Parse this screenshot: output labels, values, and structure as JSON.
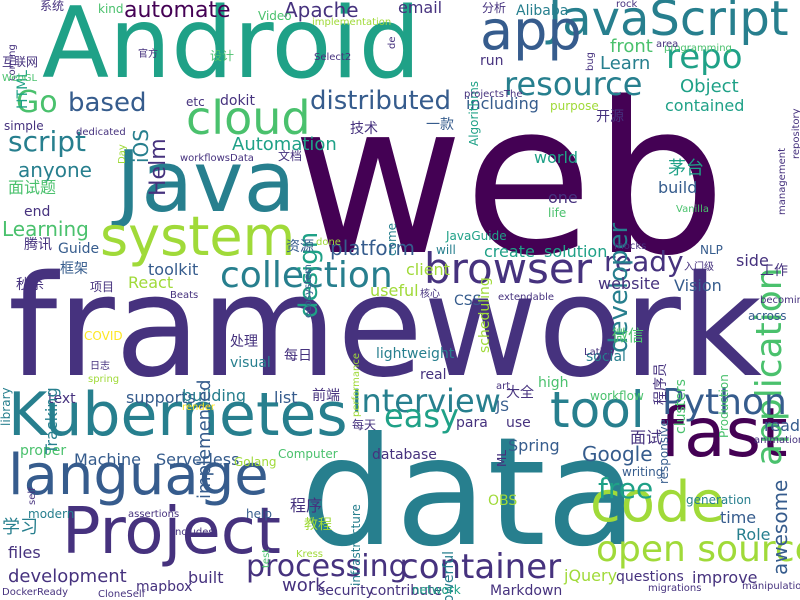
{
  "palette": {
    "p1": "#440154",
    "p2": "#46327e",
    "p3": "#365c8d",
    "p4": "#277f8e",
    "p5": "#1fa187",
    "p6": "#4ac16d",
    "p7": "#a0da39",
    "p8": "#fde725"
  },
  "words": [
    {
      "text": "web",
      "color": "p1"
    },
    {
      "text": "framework",
      "color": "p2"
    },
    {
      "text": "Android",
      "color": "p5"
    },
    {
      "text": "data",
      "color": "p4"
    },
    {
      "text": "Java",
      "color": "p4"
    },
    {
      "text": "JavaScript",
      "color": "p4"
    },
    {
      "text": "Kubernetes",
      "color": "p4"
    },
    {
      "text": "system",
      "color": "p7"
    },
    {
      "text": "app",
      "color": "p3"
    },
    {
      "text": "cloud",
      "color": "p6"
    },
    {
      "text": "tool",
      "color": "p4"
    },
    {
      "text": "fast",
      "color": "p1"
    },
    {
      "text": "code",
      "color": "p7"
    },
    {
      "text": "language",
      "color": "p3"
    },
    {
      "text": "Project",
      "color": "p2"
    },
    {
      "text": "browser",
      "color": "p2"
    },
    {
      "text": "collection",
      "color": "p4"
    },
    {
      "text": "resource",
      "color": "p4"
    },
    {
      "text": "repo",
      "color": "p5"
    },
    {
      "text": "application",
      "color": "p6"
    },
    {
      "text": "open source",
      "color": "p7"
    },
    {
      "text": "container",
      "color": "p2"
    },
    {
      "text": "processing",
      "color": "p2"
    },
    {
      "text": "Python",
      "color": "p3"
    },
    {
      "text": "Interview",
      "color": "p4"
    },
    {
      "text": "easy",
      "color": "p5"
    },
    {
      "text": "distributed",
      "color": "p3"
    },
    {
      "text": "script",
      "color": "p4"
    },
    {
      "text": "Go",
      "color": "p6"
    },
    {
      "text": "based",
      "color": "p3"
    },
    {
      "text": "ready",
      "color": "p2"
    },
    {
      "text": "automate",
      "color": "p1"
    },
    {
      "text": "platform",
      "color": "p3"
    },
    {
      "text": "design",
      "color": "p5"
    },
    {
      "text": "Helm",
      "color": "p2"
    },
    {
      "text": "iOS",
      "color": "p4"
    },
    {
      "text": "Apache",
      "color": "p2"
    },
    {
      "text": "free",
      "color": "p5"
    },
    {
      "text": "anyone",
      "color": "p4"
    },
    {
      "text": "Learning",
      "color": "p6"
    },
    {
      "text": "Learn",
      "color": "p4"
    },
    {
      "text": "front",
      "color": "p6"
    },
    {
      "text": "Object",
      "color": "p5"
    },
    {
      "text": "including",
      "color": "p3"
    },
    {
      "text": "contained",
      "color": "p5"
    },
    {
      "text": "Automation",
      "color": "p5"
    },
    {
      "text": "developer",
      "color": "p4"
    },
    {
      "text": "Google",
      "color": "p3"
    },
    {
      "text": "website",
      "color": "p2"
    },
    {
      "text": "toolkit",
      "color": "p3"
    },
    {
      "text": "React",
      "color": "p7"
    },
    {
      "text": "Vision",
      "color": "p3"
    },
    {
      "text": "Machine",
      "color": "p3"
    },
    {
      "text": "Serverless",
      "color": "p3"
    },
    {
      "text": "supports",
      "color": "p3"
    },
    {
      "text": "building",
      "color": "p4"
    },
    {
      "text": "implemented",
      "color": "p3"
    },
    {
      "text": "list",
      "color": "p3"
    },
    {
      "text": "Spring",
      "color": "p3"
    },
    {
      "text": "create",
      "color": "p5"
    },
    {
      "text": "solution",
      "color": "p5"
    },
    {
      "text": "one",
      "color": "p2"
    },
    {
      "text": "world",
      "color": "p5"
    },
    {
      "text": "build",
      "color": "p3"
    },
    {
      "text": "side",
      "color": "p2"
    },
    {
      "text": "awesome",
      "color": "p3"
    },
    {
      "text": "time",
      "color": "p3"
    },
    {
      "text": "Role",
      "color": "p4"
    },
    {
      "text": "reading",
      "color": "p3"
    },
    {
      "text": "improve",
      "color": "p2"
    },
    {
      "text": "questions",
      "color": "p2"
    },
    {
      "text": "development",
      "color": "p2"
    },
    {
      "text": "built",
      "color": "p2"
    },
    {
      "text": "work",
      "color": "p2"
    },
    {
      "text": "files",
      "color": "p2"
    },
    {
      "text": "mapbox",
      "color": "p2"
    },
    {
      "text": "Markdown",
      "color": "p2"
    },
    {
      "text": "jQuery",
      "color": "p7"
    },
    {
      "text": "contribute",
      "color": "p2"
    },
    {
      "text": "security",
      "color": "p2"
    },
    {
      "text": "database",
      "color": "p2"
    },
    {
      "text": "para",
      "color": "p2"
    },
    {
      "text": "use",
      "color": "p2"
    },
    {
      "text": "JS",
      "color": "p3"
    },
    {
      "text": "text",
      "color": "p2"
    },
    {
      "text": "proper",
      "color": "p6"
    },
    {
      "text": "useful",
      "color": "p7"
    },
    {
      "text": "client",
      "color": "p7"
    },
    {
      "text": "lightweight",
      "color": "p4"
    },
    {
      "text": "real",
      "color": "p2"
    },
    {
      "text": "high",
      "color": "p6"
    },
    {
      "text": "social",
      "color": "p4"
    },
    {
      "text": "email",
      "color": "p2"
    },
    {
      "text": "kind",
      "color": "p6"
    },
    {
      "text": "dokit",
      "color": "p2"
    },
    {
      "text": "run",
      "color": "p2"
    },
    {
      "text": "Alibaba",
      "color": "p4"
    },
    {
      "text": "end",
      "color": "p2"
    },
    {
      "text": "Guide",
      "color": "p3"
    },
    {
      "text": "Tracking",
      "color": "p4"
    },
    {
      "text": "visual",
      "color": "p4"
    },
    {
      "text": "CSS",
      "color": "p3"
    },
    {
      "text": "Golang",
      "color": "p7"
    },
    {
      "text": "Computer",
      "color": "p6"
    },
    {
      "text": "test",
      "color": "p6"
    },
    {
      "text": "help",
      "color": "p3"
    },
    {
      "text": "modern",
      "color": "p4"
    },
    {
      "text": "OBS",
      "color": "p7"
    },
    {
      "text": "powerful",
      "color": "p4"
    },
    {
      "text": "library",
      "color": "p4"
    },
    {
      "text": "simple",
      "color": "p2"
    },
    {
      "text": "HTML",
      "color": "p5"
    },
    {
      "text": "COVID",
      "color": "p8"
    },
    {
      "text": "etc",
      "color": "p2"
    },
    {
      "text": "across",
      "color": "p3"
    },
    {
      "text": "clusters",
      "color": "p6"
    },
    {
      "text": "infrastructure",
      "color": "p4"
    },
    {
      "text": "scheduling",
      "color": "p7"
    },
    {
      "text": "workflow",
      "color": "p6"
    },
    {
      "text": "writing",
      "color": "p3"
    },
    {
      "text": "generation",
      "color": "p4"
    },
    {
      "text": "purpose",
      "color": "p7"
    },
    {
      "text": "life",
      "color": "p6"
    },
    {
      "text": "come",
      "color": "p4"
    },
    {
      "text": "will",
      "color": "p4"
    },
    {
      "text": "NLP",
      "color": "p3"
    },
    {
      "text": "mocks",
      "color": "p2"
    },
    {
      "text": "manipulation",
      "color": "p2"
    },
    {
      "text": "migrations",
      "color": "p2"
    },
    {
      "text": "network",
      "color": "p5"
    },
    {
      "text": "Production",
      "color": "p6"
    },
    {
      "text": "Algorithms",
      "color": "p5"
    },
    {
      "text": "projectsThe",
      "color": "p2"
    },
    {
      "text": "programming",
      "color": "p6"
    },
    {
      "text": "repository",
      "color": "p2"
    },
    {
      "text": "management",
      "color": "p2"
    },
    {
      "text": "area",
      "color": "p2"
    },
    {
      "text": "Video",
      "color": "p6"
    },
    {
      "text": "implementation",
      "color": "p7"
    },
    {
      "text": "Select2",
      "color": "p2"
    },
    {
      "text": "ecosystem",
      "color": "p3"
    },
    {
      "text": "workflowsData",
      "color": "p2"
    },
    {
      "text": "dedicated",
      "color": "p2"
    },
    {
      "text": "performance",
      "color": "p7"
    },
    {
      "text": "extendable",
      "color": "p2"
    },
    {
      "text": "becoming",
      "color": "p2"
    },
    {
      "text": "animations",
      "color": "p2"
    },
    {
      "text": "responsive",
      "color": "p3"
    },
    {
      "text": "assertions",
      "color": "p2"
    },
    {
      "text": "Includes",
      "color": "p2"
    },
    {
      "text": "self",
      "color": "p2"
    },
    {
      "text": "render",
      "color": "p8"
    },
    {
      "text": "DockerReady",
      "color": "p2"
    },
    {
      "text": "CloneSelf",
      "color": "p2"
    },
    {
      "text": "Vanilla",
      "color": "p6"
    },
    {
      "text": "Beats",
      "color": "p2"
    },
    {
      "text": "Day",
      "color": "p7"
    },
    {
      "text": "coming",
      "color": "p2"
    },
    {
      "text": "WebGL",
      "color": "p6"
    },
    {
      "text": "rock",
      "color": "p2"
    },
    {
      "text": "bug",
      "color": "p2"
    },
    {
      "text": "de",
      "color": "p2"
    },
    {
      "text": "done",
      "color": "p7"
    },
    {
      "text": "JavaGuide",
      "color": "p5"
    },
    {
      "text": "art",
      "color": "p2"
    },
    {
      "text": "Latin",
      "color": "p2"
    },
    {
      "text": "Kress",
      "color": "p7"
    },
    {
      "text": "ML",
      "color": "p2"
    },
    {
      "text": "spring",
      "color": "p7"
    },
    {
      "text": "系统",
      "color": "p2"
    },
    {
      "text": "互联网",
      "color": "p2"
    },
    {
      "text": "官方",
      "color": "p2"
    },
    {
      "text": "设计",
      "color": "p6"
    },
    {
      "text": "分析",
      "color": "p2"
    },
    {
      "text": "开源",
      "color": "p2"
    },
    {
      "text": "技术",
      "color": "p2"
    },
    {
      "text": "一款",
      "color": "p3"
    },
    {
      "text": "文档",
      "color": "p2"
    },
    {
      "text": "茅台",
      "color": "p5"
    },
    {
      "text": "面试题",
      "color": "p6"
    },
    {
      "text": "腾讯",
      "color": "p2"
    },
    {
      "text": "资源",
      "color": "p3"
    },
    {
      "text": "框架",
      "color": "p3"
    },
    {
      "text": "秒杀",
      "color": "p2"
    },
    {
      "text": "项目",
      "color": "p2"
    },
    {
      "text": "工作",
      "color": "p2"
    },
    {
      "text": "入门级",
      "color": "p2"
    },
    {
      "text": "微信",
      "color": "p6"
    },
    {
      "text": "处理",
      "color": "p2"
    },
    {
      "text": "每日",
      "color": "p2"
    },
    {
      "text": "日志",
      "color": "p2"
    },
    {
      "text": "程序员",
      "color": "p2"
    },
    {
      "text": "前端",
      "color": "p2"
    },
    {
      "text": "大全",
      "color": "p2"
    },
    {
      "text": "每天",
      "color": "p2"
    },
    {
      "text": "面试",
      "color": "p2"
    },
    {
      "text": "学习",
      "color": "p4"
    },
    {
      "text": "程序",
      "color": "p2"
    },
    {
      "text": "教程",
      "color": "p7"
    },
    {
      "text": "核心",
      "color": "p2"
    }
  ]
}
